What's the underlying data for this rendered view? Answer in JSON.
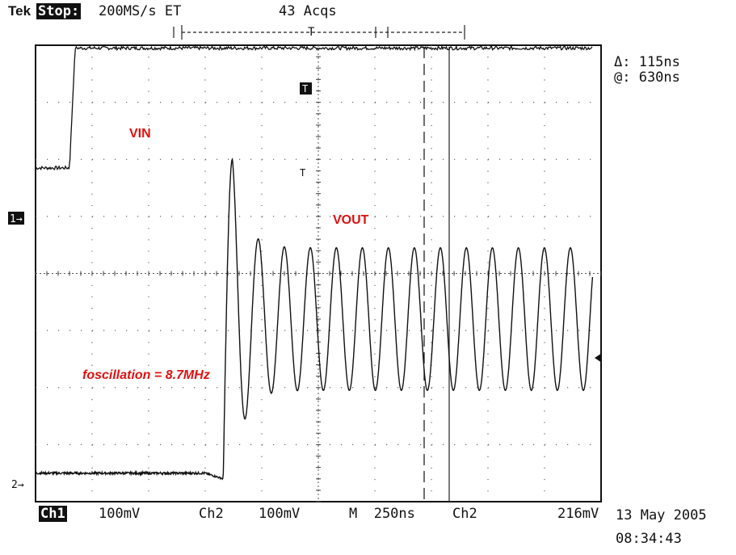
{
  "header": {
    "brand": "Tek",
    "mode": "Stop:",
    "sample_rate": "200MS/s ET",
    "acquisitions": "43 Acqs"
  },
  "cursor_readout": {
    "delta": "Δ: 115ns",
    "at": "@: 630ns"
  },
  "footer": {
    "ch1_label": "Ch1",
    "ch1_scale": "100mV",
    "ch2_label": "Ch2",
    "ch2_scale": "100mV",
    "timebase": "M  250ns",
    "trigger_source": "Ch2",
    "trigger_level": "216mV",
    "date": "13 May 2005",
    "time": "08:34:43"
  },
  "markers": {
    "ch1": "1→",
    "ch2": "2→",
    "trigger_T": "T"
  },
  "chart_data": {
    "type": "line",
    "title": "",
    "xlabel": "",
    "ylabel": "",
    "grid": true,
    "x_unit": "ns",
    "x_divisions": 10,
    "y_divisions": 8,
    "time_per_div_ns": 250,
    "volts_per_div_mV": 100,
    "cursor_delta_ns": 115,
    "cursor_at_ns": 630,
    "frequency_annotation": "foscillation = 8.7MHz",
    "series": [
      {
        "name": "VIN",
        "color": "#111111",
        "baseline_div": 1.85,
        "step_time_ns": 150,
        "step_height_div": 2.1
      },
      {
        "name": "VOUT",
        "color": "#111111",
        "baseline_div": -3.5,
        "rise_time_ns": 830,
        "peak_div": 2.0,
        "settle_level_div": -0.8,
        "oscillation_MHz": 8.7,
        "oscillation_amp_div": 1.25
      }
    ]
  }
}
